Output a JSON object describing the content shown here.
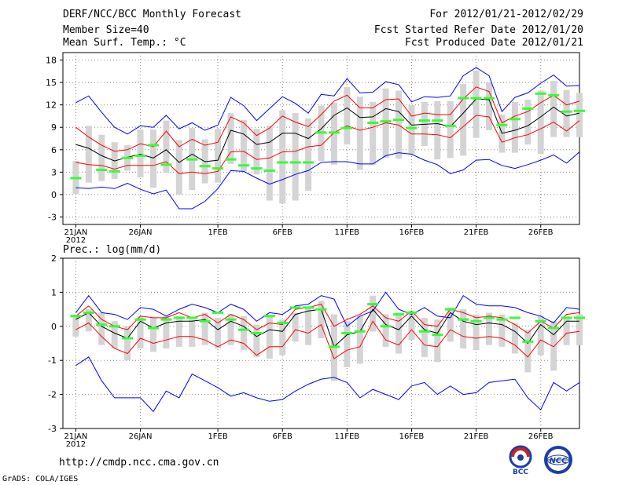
{
  "header": {
    "title": "DERF/NCC/BCC Monthly Forecast",
    "member_size": "Member Size=40",
    "variable": "Mean Surf. Temp.: °C",
    "period": "For 2012/01/21-2012/02/29",
    "started": "Fcst Started Refer Date 2012/01/20",
    "produced": "Fcst Produced Date 2012/01/21"
  },
  "precip_label": "Prec.: log(mm/d)",
  "footer": {
    "url": "http://cmdp.ncc.cma.gov.cn",
    "credit": "GrADS: COLA/IGES"
  },
  "logos": {
    "bcc": "BCC",
    "ncc": "NCC"
  },
  "colors": {
    "max": "#0000ff",
    "pct": "#ff0000",
    "median": "#000000",
    "box": "#d4d4d4",
    "obs": "#33ff33"
  },
  "chart_data": [
    {
      "type": "box-line",
      "name": "temperature",
      "ylabel": "Mean Surf. Temp.: °C",
      "ylim": [
        -4,
        19
      ],
      "yticks": [
        -3,
        0,
        3,
        6,
        9,
        12,
        15,
        18
      ],
      "xlim": [
        0,
        40
      ],
      "xticks": [
        {
          "day": 1,
          "label": "21JAN",
          "sub": "2012"
        },
        {
          "day": 6,
          "label": "26JAN"
        },
        {
          "day": 12,
          "label": "1FEB"
        },
        {
          "day": 17,
          "label": "6FEB"
        },
        {
          "day": 22,
          "label": "11FEB"
        },
        {
          "day": 27,
          "label": "16FEB"
        },
        {
          "day": 32,
          "label": "21FEB"
        },
        {
          "day": 37,
          "label": "26FEB"
        }
      ],
      "series": {
        "upper": [
          12.3,
          13.2,
          11.0,
          9.0,
          8.1,
          9.2,
          9.0,
          10.6,
          8.8,
          9.6,
          8.6,
          9.3,
          13.0,
          11.9,
          9.9,
          11.5,
          13.1,
          12.2,
          10.9,
          13.4,
          13.2,
          15.5,
          13.6,
          13.7,
          15.1,
          14.7,
          12.4,
          13.1,
          13.0,
          13.2,
          15.9,
          17.0,
          15.9,
          11.1,
          13.0,
          13.6,
          14.9,
          16.0,
          14.5,
          14.6
        ],
        "p90": [
          9.0,
          7.7,
          6.6,
          5.8,
          6.0,
          6.8,
          6.4,
          8.5,
          6.4,
          7.4,
          6.6,
          7.0,
          10.4,
          9.6,
          7.9,
          8.9,
          10.5,
          9.7,
          9.1,
          10.7,
          12.5,
          13.3,
          11.6,
          11.6,
          12.7,
          12.8,
          10.5,
          10.9,
          10.7,
          10.7,
          12.8,
          14.4,
          13.8,
          9.6,
          10.5,
          11.1,
          12.3,
          13.3,
          12.0,
          12.5
        ],
        "median": [
          6.7,
          6.2,
          5.2,
          4.5,
          5.0,
          5.4,
          4.9,
          6.0,
          4.3,
          5.4,
          4.4,
          4.6,
          8.6,
          8.1,
          6.7,
          7.0,
          8.2,
          8.2,
          7.5,
          8.8,
          10.6,
          11.6,
          10.3,
          10.4,
          11.5,
          11.1,
          9.3,
          9.4,
          9.5,
          9.1,
          10.9,
          12.8,
          12.7,
          8.2,
          8.6,
          9.2,
          10.4,
          11.7,
          10.5,
          10.9
        ],
        "p10": [
          4.3,
          4.0,
          3.9,
          3.4,
          3.9,
          3.9,
          3.9,
          4.4,
          2.8,
          3.0,
          2.8,
          3.1,
          5.7,
          5.8,
          4.7,
          4.9,
          5.7,
          5.8,
          6.4,
          6.6,
          8.3,
          9.2,
          8.6,
          9.0,
          9.6,
          9.3,
          8.1,
          8.1,
          8.0,
          7.6,
          9.1,
          10.6,
          10.4,
          7.0,
          7.6,
          8.0,
          8.8,
          9.7,
          8.5,
          9.9
        ],
        "lower": [
          0.9,
          0.8,
          1.0,
          0.8,
          1.5,
          0.7,
          0.1,
          0.6,
          -1.9,
          -1.9,
          -0.9,
          0.8,
          3.2,
          3.1,
          2.2,
          1.4,
          2.0,
          2.7,
          3.2,
          4.3,
          4.4,
          4.4,
          4.1,
          4.1,
          5.2,
          5.6,
          5.4,
          4.6,
          4.0,
          2.8,
          3.3,
          4.6,
          4.7,
          3.9,
          3.5,
          4.0,
          4.6,
          5.3,
          4.2,
          5.7
        ],
        "box_top": [
          4.5,
          9.2,
          8.0,
          7.0,
          6.6,
          8.7,
          8.7,
          9.9,
          7.3,
          8.9,
          7.4,
          8.8,
          10.9,
          10.0,
          8.8,
          9.2,
          11.3,
          10.9,
          10.2,
          11.9,
          12.3,
          14.4,
          13.1,
          12.4,
          14.2,
          13.9,
          12.0,
          12.4,
          12.5,
          12.5,
          14.8,
          16.6,
          15.0,
          10.7,
          12.4,
          12.7,
          13.9,
          15.2,
          14.0,
          13.6
        ],
        "box_bottom": [
          0.1,
          1.6,
          1.8,
          2.1,
          3.2,
          2.3,
          0.9,
          2.9,
          0.0,
          0.6,
          1.5,
          1.6,
          4.1,
          3.1,
          2.7,
          -0.8,
          -1.2,
          -0.8,
          0.5,
          4.5,
          4.0,
          6.7,
          3.3,
          4.0,
          4.9,
          4.8,
          5.4,
          6.5,
          4.7,
          4.9,
          5.2,
          7.6,
          8.6,
          5.6,
          5.6,
          6.7,
          5.4,
          7.7,
          7.7,
          7.7
        ],
        "obs": [
          2.2,
          null,
          3.3,
          3.1,
          4.9,
          5.2,
          6.6,
          4.0,
          null,
          4.7,
          3.8,
          3.5,
          4.7,
          3.9,
          3.5,
          3.2,
          4.3,
          4.3,
          4.3,
          8.3,
          8.3,
          8.9,
          null,
          9.6,
          9.8,
          10.0,
          8.9,
          9.9,
          9.9,
          9.2,
          12.9,
          12.9,
          12.9,
          9.3,
          10.1,
          11.5,
          13.5,
          13.3,
          11.1,
          11.2
        ]
      }
    },
    {
      "type": "box-line",
      "name": "precipitation",
      "ylabel": "Prec.: log(mm/d)",
      "ylim": [
        -3,
        2
      ],
      "yticks": [
        -3,
        -2,
        -1,
        0,
        1,
        2
      ],
      "xlim": [
        0,
        40
      ],
      "xticks": [
        {
          "day": 1,
          "label": "21JAN",
          "sub": "2012"
        },
        {
          "day": 6,
          "label": "26JAN"
        },
        {
          "day": 12,
          "label": "1FEB"
        },
        {
          "day": 17,
          "label": "6FEB"
        },
        {
          "day": 22,
          "label": "11FEB"
        },
        {
          "day": 27,
          "label": "16FEB"
        },
        {
          "day": 32,
          "label": "21FEB"
        },
        {
          "day": 37,
          "label": "26FEB"
        }
      ],
      "series": {
        "upper": [
          0.4,
          0.9,
          0.4,
          0.35,
          0.2,
          0.55,
          0.5,
          0.3,
          0.5,
          0.65,
          0.55,
          0.4,
          0.65,
          0.5,
          0.15,
          0.4,
          0.35,
          0.6,
          0.65,
          0.9,
          0.8,
          0.0,
          0.3,
          0.45,
          1.0,
          0.5,
          0.35,
          0.55,
          0.3,
          0.25,
          0.9,
          0.65,
          0.6,
          0.6,
          0.55,
          0.4,
          0.3,
          0.1,
          0.55,
          0.5
        ],
        "p90": [
          0.3,
          0.6,
          0.2,
          0.0,
          -0.1,
          0.3,
          0.25,
          0.25,
          0.4,
          0.25,
          0.35,
          0.1,
          0.35,
          0.2,
          -0.1,
          0.1,
          0.05,
          0.5,
          0.55,
          0.65,
          0.0,
          0.2,
          0.35,
          0.6,
          0.25,
          0.15,
          0.45,
          0.05,
          0.0,
          0.5,
          0.4,
          0.25,
          0.3,
          0.25,
          0.05,
          -0.2,
          0.15,
          -0.05,
          0.35,
          0.4
        ],
        "median": [
          0.2,
          0.4,
          0.0,
          -0.2,
          -0.35,
          0.15,
          -0.05,
          0.1,
          0.15,
          0.15,
          0.2,
          -0.1,
          0.15,
          0.0,
          -0.3,
          -0.1,
          -0.15,
          0.35,
          0.45,
          0.5,
          -0.6,
          -0.25,
          -0.15,
          0.5,
          0.05,
          -0.1,
          0.3,
          -0.1,
          -0.2,
          0.4,
          0.15,
          0.05,
          0.1,
          0.05,
          -0.15,
          -0.5,
          0.05,
          -0.25,
          0.15,
          0.15
        ],
        "p10": [
          -0.1,
          0.1,
          -0.3,
          -0.65,
          -0.8,
          -0.35,
          -0.5,
          -0.4,
          -0.3,
          -0.3,
          -0.4,
          -0.6,
          -0.4,
          -0.5,
          -0.85,
          -0.6,
          -0.6,
          -0.1,
          -0.2,
          0.05,
          -0.95,
          -0.7,
          -0.6,
          0.15,
          -0.4,
          -0.55,
          -0.1,
          -0.55,
          -0.6,
          -0.1,
          -0.3,
          -0.35,
          -0.3,
          -0.35,
          -0.55,
          -0.9,
          -0.4,
          -0.6,
          -0.2,
          -0.15
        ],
        "lower": [
          -1.15,
          -0.9,
          -1.6,
          -2.1,
          -2.1,
          -2.1,
          -2.5,
          -1.9,
          -2.1,
          -1.4,
          -1.6,
          -1.8,
          -2.05,
          -1.95,
          -2.1,
          -2.2,
          -2.15,
          -1.9,
          -1.7,
          -1.55,
          -1.5,
          -1.65,
          -2.1,
          -1.85,
          -2.0,
          -2.15,
          -1.75,
          -1.65,
          -2.0,
          -1.75,
          -2.0,
          -1.95,
          -1.65,
          -1.6,
          -1.55,
          -2.1,
          -2.45,
          -1.65,
          -1.9,
          -1.65
        ],
        "box_top": [
          0.3,
          0.5,
          0.4,
          0.15,
          0.0,
          0.3,
          0.25,
          0.3,
          0.3,
          0.2,
          0.4,
          0.25,
          0.35,
          0.3,
          0.05,
          0.3,
          0.2,
          0.4,
          0.55,
          0.75,
          0.35,
          0.15,
          0.3,
          0.9,
          0.35,
          0.4,
          0.45,
          0.25,
          0.2,
          0.55,
          0.5,
          0.35,
          0.4,
          0.35,
          0.1,
          -0.1,
          0.3,
          0.15,
          0.25,
          0.35
        ],
        "box_bottom": [
          -0.3,
          -0.15,
          -0.55,
          -0.65,
          -1.0,
          -0.65,
          -0.75,
          -0.65,
          -0.6,
          -0.6,
          -0.55,
          -0.65,
          -0.55,
          -0.7,
          -0.9,
          -0.95,
          -0.85,
          -0.45,
          -0.55,
          -0.35,
          -1.6,
          -1.2,
          -1.1,
          -0.15,
          -0.6,
          -0.8,
          -0.4,
          -0.9,
          -1.05,
          -0.45,
          -0.65,
          -0.7,
          -0.55,
          -0.6,
          -0.8,
          -1.35,
          -0.85,
          -1.3,
          -0.55,
          -0.55
        ],
        "obs": [
          0.3,
          0.4,
          0.05,
          0.0,
          -0.35,
          0.2,
          -0.05,
          0.2,
          0.25,
          0.25,
          0.15,
          0.4,
          0.2,
          -0.1,
          -0.2,
          0.3,
          0.1,
          0.55,
          0.55,
          0.5,
          -0.6,
          -0.2,
          -0.15,
          0.65,
          0.0,
          0.35,
          0.4,
          -0.15,
          -0.25,
          0.5,
          0.2,
          0.15,
          0.25,
          0.2,
          0.25,
          -0.45,
          0.15,
          -0.05,
          0.25,
          0.25
        ]
      }
    }
  ]
}
